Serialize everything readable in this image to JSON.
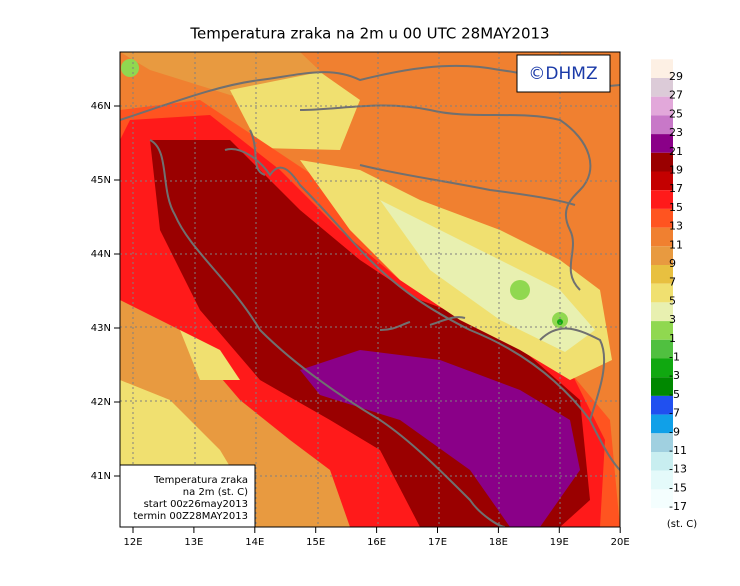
{
  "title": "Temperatura zraka na 2m u 00 UTC 28MAY2013",
  "logo": "©DHMZ",
  "lat_labels": [
    "46N",
    "45N",
    "44N",
    "43N",
    "42N",
    "41N"
  ],
  "lon_labels": [
    "12E",
    "13E",
    "14E",
    "15E",
    "16E",
    "17E",
    "18E",
    "19E",
    "20E"
  ],
  "info_box": [
    "Temperatura zraka",
    "na 2m (st. C)",
    "start 00z26may2013",
    "termin 00Z28MAY2013"
  ],
  "legend": {
    "levels": [
      29,
      27,
      25,
      23,
      21,
      19,
      17,
      15,
      13,
      11,
      9,
      7,
      5,
      3,
      1,
      -1,
      -3,
      -5,
      -7,
      -9,
      -11,
      -13,
      -15,
      -17
    ],
    "colors": [
      "#fdf0e4",
      "#dccbd8",
      "#e2a8da",
      "#c878c8",
      "#8a0088",
      "#9a0000",
      "#c40000",
      "#ff1a1a",
      "#ff5420",
      "#f08030",
      "#e89a40",
      "#e8c040",
      "#f0e070",
      "#e8f0b0",
      "#90d850",
      "#50c040",
      "#10a810",
      "#008800",
      "#2050f0",
      "#10a0e8",
      "#a0d0e0",
      "#c8eef0",
      "#e4fafa",
      "#f4fefe"
    ],
    "unit": "(st. C)"
  }
}
